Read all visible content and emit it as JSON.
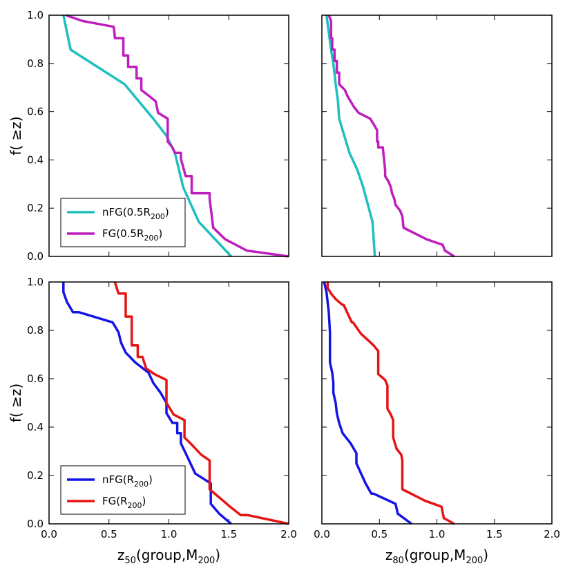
{
  "chart_data": [
    {
      "type": "line",
      "panel": "top-left",
      "ylabel": "f( ≥z)",
      "xlim": [
        0,
        2
      ],
      "ylim": [
        0,
        1
      ],
      "xticks": [
        "0.0",
        "0.5",
        "1.0",
        "1.5",
        "2.0"
      ],
      "yticks": [
        "0.0",
        "0.2",
        "0.4",
        "0.6",
        "0.8",
        "1.0"
      ],
      "show_xticklabels": false,
      "show_yticklabels": true,
      "legend": "lower-left",
      "series": [
        {
          "name": "nFG(0.5R200)",
          "label_main": "nFG(0.5R",
          "label_sub": "200",
          "label_end": ")",
          "color": "#1ebfbf",
          "x": [
            0.12,
            0.18,
            0.63,
            0.87,
            0.98,
            1.05,
            1.12,
            1.25,
            1.52
          ],
          "y": [
            1.0,
            0.857,
            0.714,
            0.571,
            0.5,
            0.429,
            0.286,
            0.143,
            0.0
          ]
        },
        {
          "name": "FG(0.5R200)",
          "label_main": "FG(0.5R",
          "label_sub": "200",
          "label_end": ")",
          "color": "#bf1ebf",
          "x": [
            0.14,
            0.28,
            0.54,
            0.55,
            0.62,
            0.62,
            0.66,
            0.66,
            0.73,
            0.73,
            0.77,
            0.77,
            0.83,
            0.89,
            0.91,
            0.99,
            0.99,
            1.03,
            1.05,
            1.1,
            1.1,
            1.14,
            1.19,
            1.19,
            1.34,
            1.34,
            1.37,
            1.42,
            1.47,
            1.65,
            2.0
          ],
          "y": [
            1.0,
            0.976,
            0.952,
            0.905,
            0.905,
            0.833,
            0.833,
            0.786,
            0.786,
            0.738,
            0.738,
            0.69,
            0.667,
            0.643,
            0.595,
            0.571,
            0.476,
            0.452,
            0.429,
            0.429,
            0.405,
            0.333,
            0.333,
            0.262,
            0.262,
            0.238,
            0.119,
            0.095,
            0.071,
            0.024,
            0.0
          ]
        }
      ]
    },
    {
      "type": "line",
      "panel": "top-right",
      "xlim": [
        0,
        2
      ],
      "ylim": [
        0,
        1
      ],
      "xticks": [
        "0.0",
        "0.5",
        "1.0",
        "1.5",
        "2.0"
      ],
      "yticks": [
        "0.0",
        "0.2",
        "0.4",
        "0.6",
        "0.8",
        "1.0"
      ],
      "show_xticklabels": false,
      "show_yticklabels": false,
      "series": [
        {
          "name": "nFG(0.5R200)",
          "color": "#1ebfbf",
          "x": [
            0.04,
            0.08,
            0.1,
            0.12,
            0.14,
            0.15,
            0.24,
            0.31,
            0.36,
            0.44,
            0.46
          ],
          "y": [
            1.0,
            0.857,
            0.8,
            0.714,
            0.643,
            0.571,
            0.429,
            0.357,
            0.286,
            0.143,
            0.0
          ]
        },
        {
          "name": "FG(0.5R200)",
          "color": "#bf1ebf",
          "x": [
            0.06,
            0.08,
            0.08,
            0.09,
            0.09,
            0.11,
            0.11,
            0.13,
            0.13,
            0.15,
            0.15,
            0.2,
            0.22,
            0.28,
            0.32,
            0.42,
            0.45,
            0.48,
            0.48,
            0.49,
            0.49,
            0.53,
            0.55,
            0.55,
            0.58,
            0.6,
            0.61,
            0.63,
            0.64,
            0.68,
            0.7,
            0.71,
            0.91,
            1.05,
            1.07,
            1.15
          ],
          "y": [
            1.0,
            0.976,
            0.905,
            0.905,
            0.857,
            0.857,
            0.81,
            0.81,
            0.762,
            0.762,
            0.714,
            0.69,
            0.667,
            0.619,
            0.595,
            0.571,
            0.548,
            0.524,
            0.476,
            0.476,
            0.452,
            0.452,
            0.357,
            0.333,
            0.31,
            0.286,
            0.262,
            0.238,
            0.214,
            0.19,
            0.167,
            0.119,
            0.071,
            0.048,
            0.024,
            0.0
          ]
        }
      ]
    },
    {
      "type": "line",
      "panel": "bottom-left",
      "xlabel_main": "z",
      "xlabel_sub": "50",
      "xlabel_end": "(group,M",
      "xlabel_sub2": "200",
      "xlabel_end2": ")",
      "ylabel": "f( ≥z)",
      "xlim": [
        0,
        2
      ],
      "ylim": [
        0,
        1
      ],
      "xticks": [
        "0.0",
        "0.5",
        "1.0",
        "1.5",
        "2.0"
      ],
      "yticks": [
        "0.0",
        "0.2",
        "0.4",
        "0.6",
        "0.8",
        "1.0"
      ],
      "show_xticklabels": true,
      "show_yticklabels": true,
      "legend": "lower-left",
      "series": [
        {
          "name": "nFG(R200)",
          "label_main": "nFG(R",
          "label_sub": "200",
          "label_end": ")",
          "color": "#1414e6",
          "x": [
            0.12,
            0.12,
            0.15,
            0.2,
            0.25,
            0.53,
            0.58,
            0.6,
            0.64,
            0.72,
            0.83,
            0.87,
            0.87,
            0.93,
            0.98,
            0.98,
            1.03,
            1.07,
            1.07,
            1.1,
            1.1,
            1.14,
            1.22,
            1.35,
            1.35,
            1.42,
            1.52
          ],
          "y": [
            1.0,
            0.958,
            0.917,
            0.875,
            0.875,
            0.833,
            0.792,
            0.75,
            0.708,
            0.667,
            0.625,
            0.583,
            0.583,
            0.542,
            0.5,
            0.458,
            0.417,
            0.417,
            0.375,
            0.375,
            0.333,
            0.292,
            0.208,
            0.167,
            0.083,
            0.042,
            0.0
          ]
        },
        {
          "name": "FG(R200)",
          "label_main": "FG(R",
          "label_sub": "200",
          "label_end": ")",
          "color": "#e61414",
          "x": [
            0.55,
            0.58,
            0.64,
            0.64,
            0.69,
            0.69,
            0.74,
            0.74,
            0.78,
            0.81,
            0.88,
            0.98,
            0.98,
            1.01,
            1.04,
            1.13,
            1.13,
            1.18,
            1.27,
            1.34,
            1.34,
            1.51,
            1.6,
            1.66,
            2.0
          ],
          "y": [
            1.0,
            0.952,
            0.952,
            0.857,
            0.857,
            0.738,
            0.738,
            0.69,
            0.69,
            0.643,
            0.619,
            0.595,
            0.5,
            0.476,
            0.452,
            0.429,
            0.357,
            0.333,
            0.286,
            0.262,
            0.143,
            0.071,
            0.036,
            0.036,
            0.0
          ]
        }
      ]
    },
    {
      "type": "line",
      "panel": "bottom-right",
      "xlabel_main": "z",
      "xlabel_sub": "80",
      "xlabel_end": "(group,M",
      "xlabel_sub2": "200",
      "xlabel_end2": ")",
      "xlim": [
        0,
        2
      ],
      "ylim": [
        0,
        1
      ],
      "xticks": [
        "0.0",
        "0.5",
        "1.0",
        "1.5",
        "2.0"
      ],
      "yticks": [
        "0.0",
        "0.2",
        "0.4",
        "0.6",
        "0.8",
        "1.0"
      ],
      "show_xticklabels": true,
      "show_yticklabels": false,
      "series": [
        {
          "name": "nFG(R200)",
          "color": "#1414e6",
          "x": [
            0.02,
            0.04,
            0.05,
            0.06,
            0.07,
            0.07,
            0.09,
            0.1,
            0.1,
            0.12,
            0.13,
            0.15,
            0.18,
            0.25,
            0.3,
            0.3,
            0.38,
            0.43,
            0.45,
            0.64,
            0.66,
            0.78
          ],
          "y": [
            1.0,
            0.958,
            0.917,
            0.875,
            0.792,
            0.667,
            0.625,
            0.583,
            0.542,
            0.5,
            0.458,
            0.417,
            0.375,
            0.333,
            0.292,
            0.25,
            0.167,
            0.125,
            0.125,
            0.083,
            0.042,
            0.0
          ]
        },
        {
          "name": "FG(R200)",
          "color": "#e61414",
          "x": [
            0.05,
            0.05,
            0.08,
            0.12,
            0.18,
            0.19,
            0.26,
            0.27,
            0.34,
            0.45,
            0.49,
            0.49,
            0.55,
            0.57,
            0.57,
            0.6,
            0.62,
            0.62,
            0.65,
            0.69,
            0.7,
            0.7,
            0.9,
            1.04,
            1.06,
            1.15
          ],
          "y": [
            1.0,
            0.976,
            0.952,
            0.929,
            0.905,
            0.905,
            0.833,
            0.833,
            0.786,
            0.738,
            0.714,
            0.619,
            0.595,
            0.571,
            0.476,
            0.452,
            0.429,
            0.357,
            0.31,
            0.286,
            0.262,
            0.143,
            0.095,
            0.071,
            0.024,
            0.0
          ]
        }
      ]
    }
  ]
}
